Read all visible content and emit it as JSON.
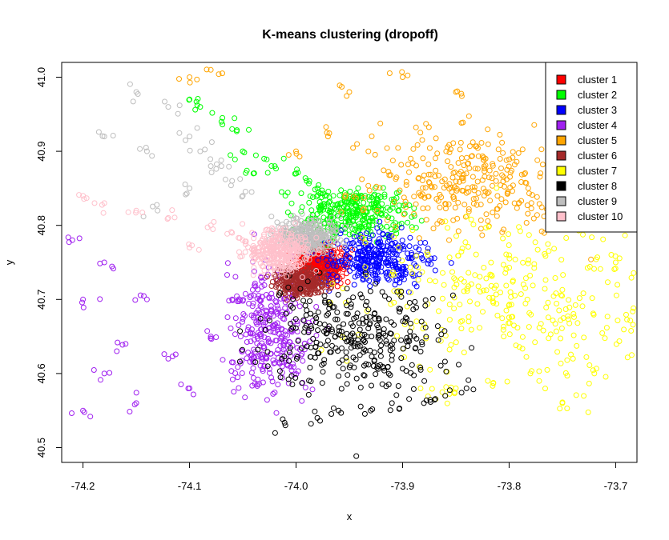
{
  "chart_data": {
    "type": "scatter",
    "title": "K-means clustering (dropoff)",
    "xlabel": "x",
    "ylabel": "y",
    "xlim": [
      -74.22,
      -73.68
    ],
    "ylim": [
      40.48,
      41.02
    ],
    "xticks": [
      -74.2,
      -74.1,
      -74.0,
      -73.9,
      -73.8,
      -73.7
    ],
    "xtick_labels": [
      "-74.2",
      "-74.1",
      "-74.0",
      "-73.9",
      "-73.8",
      "-73.7"
    ],
    "yticks": [
      40.5,
      40.6,
      40.7,
      40.8,
      40.9,
      41.0
    ],
    "ytick_labels": [
      "40.5",
      "40.6",
      "40.7",
      "40.8",
      "40.9",
      "41.0"
    ],
    "marker": "open-circle",
    "legend_position": "top-right",
    "series": [
      {
        "name": "cluster 1",
        "color": "#FF0000",
        "dense_center": [
          -73.977,
          40.748
        ],
        "dense_spread": [
          0.012,
          0.012
        ],
        "sparse_points": [
          [
            -73.99,
            40.76
          ],
          [
            -73.965,
            40.735
          ],
          [
            -73.985,
            40.742
          ]
        ]
      },
      {
        "name": "cluster 2",
        "color": "#00FF00",
        "dense_center": [
          -73.945,
          40.815
        ],
        "dense_spread": [
          0.025,
          0.018
        ],
        "sparse_points": [
          [
            -74.1,
            40.97
          ],
          [
            -74.09,
            40.96
          ],
          [
            -74.07,
            40.94
          ],
          [
            -74.06,
            40.93
          ],
          [
            -74.05,
            40.9
          ],
          [
            -74.03,
            40.89
          ],
          [
            -74.02,
            40.88
          ],
          [
            -74.0,
            40.87
          ],
          [
            -73.99,
            40.86
          ],
          [
            -73.98,
            40.85
          ],
          [
            -74.01,
            40.84
          ],
          [
            -74.04,
            40.87
          ]
        ]
      },
      {
        "name": "cluster 3",
        "color": "#0000FF",
        "dense_center": [
          -73.925,
          40.755
        ],
        "dense_spread": [
          0.025,
          0.017
        ],
        "sparse_points": []
      },
      {
        "name": "cluster 4",
        "color": "#A020F0",
        "dense_center": [
          -74.025,
          40.66
        ],
        "dense_spread": [
          0.02,
          0.045
        ],
        "sparse_points": [
          [
            -74.2,
            40.55
          ],
          [
            -74.18,
            40.6
          ],
          [
            -74.16,
            40.64
          ],
          [
            -74.14,
            40.7
          ],
          [
            -74.12,
            40.62
          ],
          [
            -74.1,
            40.58
          ],
          [
            -74.2,
            40.7
          ],
          [
            -74.18,
            40.75
          ],
          [
            -74.06,
            40.7
          ],
          [
            -74.08,
            40.65
          ],
          [
            -74.15,
            40.56
          ],
          [
            -74.21,
            40.78
          ]
        ]
      },
      {
        "name": "cluster 5",
        "color": "#FFA500",
        "dense_center": [
          -73.84,
          40.86
        ],
        "dense_spread": [
          0.05,
          0.035
        ],
        "sparse_points": [
          [
            -74.0,
            40.9
          ],
          [
            -73.97,
            40.92
          ],
          [
            -73.9,
            41.0
          ],
          [
            -73.85,
            40.98
          ],
          [
            -73.75,
            41.0
          ],
          [
            -73.72,
            40.95
          ],
          [
            -74.1,
            41.0
          ],
          [
            -74.08,
            41.01
          ],
          [
            -73.95,
            40.98
          ]
        ]
      },
      {
        "name": "cluster 6",
        "color": "#A52A2A",
        "dense_center": [
          -73.995,
          40.725
        ],
        "dense_spread": [
          0.012,
          0.01
        ],
        "sparse_points": []
      },
      {
        "name": "cluster 7",
        "color": "#FFFF00",
        "dense_center": [
          -73.79,
          40.7
        ],
        "dense_spread": [
          0.075,
          0.055
        ],
        "sparse_points": [
          [
            -73.85,
            40.58
          ],
          [
            -73.82,
            40.59
          ],
          [
            -73.78,
            40.6
          ],
          [
            -73.74,
            40.62
          ],
          [
            -73.72,
            40.6
          ],
          [
            -73.7,
            40.75
          ],
          [
            -73.71,
            40.82
          ],
          [
            -73.75,
            40.56
          ],
          [
            -73.86,
            40.57
          ]
        ]
      },
      {
        "name": "cluster 8",
        "color": "#000000",
        "dense_center": [
          -73.945,
          40.65
        ],
        "dense_spread": [
          0.04,
          0.035
        ],
        "sparse_points": [
          [
            -73.95,
            40.48
          ],
          [
            -74.01,
            40.53
          ],
          [
            -73.98,
            40.54
          ],
          [
            -73.96,
            40.55
          ],
          [
            -73.93,
            40.55
          ],
          [
            -73.91,
            40.56
          ],
          [
            -73.88,
            40.56
          ],
          [
            -73.86,
            40.57
          ],
          [
            -73.84,
            40.58
          ]
        ]
      },
      {
        "name": "cluster 9",
        "color": "#BEBEBE",
        "dense_center": [
          -73.99,
          40.785
        ],
        "dense_spread": [
          0.015,
          0.012
        ],
        "sparse_points": [
          [
            -74.15,
            40.98
          ],
          [
            -74.12,
            40.96
          ],
          [
            -74.1,
            40.92
          ],
          [
            -74.09,
            40.9
          ],
          [
            -74.08,
            40.88
          ],
          [
            -74.06,
            40.86
          ],
          [
            -74.05,
            40.84
          ],
          [
            -74.14,
            40.9
          ],
          [
            -74.18,
            40.92
          ],
          [
            -74.1,
            40.85
          ],
          [
            -74.13,
            40.82
          ],
          [
            -74.07,
            40.88
          ]
        ]
      },
      {
        "name": "cluster 10",
        "color": "#FFC0CB",
        "dense_center": [
          -74.015,
          40.765
        ],
        "dense_spread": [
          0.015,
          0.015
        ],
        "sparse_points": [
          [
            -74.2,
            40.84
          ],
          [
            -74.18,
            40.83
          ],
          [
            -74.15,
            40.82
          ],
          [
            -74.12,
            40.81
          ],
          [
            -74.08,
            40.8
          ],
          [
            -74.06,
            40.79
          ],
          [
            -74.05,
            40.78
          ],
          [
            -74.1,
            40.77
          ]
        ]
      }
    ]
  }
}
